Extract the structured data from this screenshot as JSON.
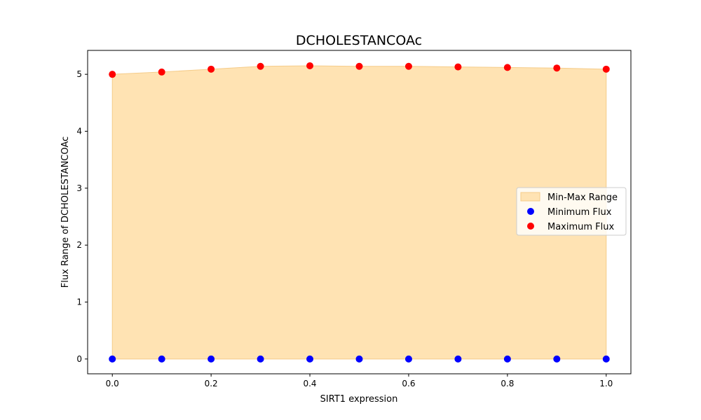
{
  "chart_data": {
    "type": "scatter",
    "title": "DCHOLESTANCOAc",
    "xlabel": "SIRT1 expression",
    "ylabel": "Flux Range of DCHOLESTANCOAc",
    "xlim": [
      -0.05,
      1.05
    ],
    "ylim": [
      -0.26,
      5.42
    ],
    "x_ticks": [
      0.0,
      0.2,
      0.4,
      0.6,
      0.8,
      1.0
    ],
    "x_tick_labels": [
      "0.0",
      "0.2",
      "0.4",
      "0.6",
      "0.8",
      "1.0"
    ],
    "y_ticks": [
      0,
      1,
      2,
      3,
      4,
      5
    ],
    "y_tick_labels": [
      "0",
      "1",
      "2",
      "3",
      "4",
      "5"
    ],
    "x": [
      0.0,
      0.1,
      0.2,
      0.3,
      0.4,
      0.5,
      0.6,
      0.7,
      0.8,
      0.9,
      1.0
    ],
    "series": [
      {
        "name": "Min-Max Range",
        "kind": "fill_between",
        "color": "#ffe3b3",
        "edge_color": "#f5cc8a"
      },
      {
        "name": "Minimum Flux",
        "kind": "scatter",
        "color": "#0000ff",
        "values": [
          0,
          0,
          0,
          0,
          0,
          0,
          0,
          0,
          0,
          0,
          0
        ]
      },
      {
        "name": "Maximum Flux",
        "kind": "scatter",
        "color": "#ff0000",
        "values": [
          5.0,
          5.04,
          5.09,
          5.14,
          5.15,
          5.14,
          5.14,
          5.13,
          5.12,
          5.11,
          5.09
        ]
      }
    ],
    "grid": false,
    "legend_position": "center-right"
  }
}
